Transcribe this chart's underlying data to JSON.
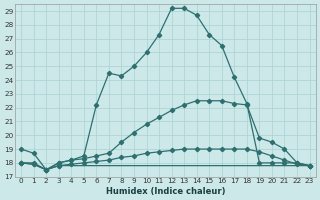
{
  "xlabel": "Humidex (Indice chaleur)",
  "bg_color": "#cce8e8",
  "grid_color": "#b0d4d4",
  "line_color": "#2e7070",
  "xlim": [
    -0.5,
    23.5
  ],
  "ylim": [
    17,
    29.5
  ],
  "yticks": [
    17,
    18,
    19,
    20,
    21,
    22,
    23,
    24,
    25,
    26,
    27,
    28,
    29
  ],
  "xticks": [
    0,
    1,
    2,
    3,
    4,
    5,
    6,
    7,
    8,
    9,
    10,
    11,
    12,
    13,
    14,
    15,
    16,
    17,
    18,
    19,
    20,
    21,
    22,
    23
  ],
  "line1_x": [
    0,
    1,
    2,
    3,
    4,
    5,
    6,
    7,
    8,
    9,
    10,
    11,
    12,
    13,
    14,
    15,
    16,
    17,
    18,
    19,
    20,
    21,
    22,
    23
  ],
  "line1_y": [
    19.0,
    18.7,
    17.5,
    18.0,
    18.2,
    18.5,
    22.2,
    24.5,
    24.3,
    25.0,
    26.0,
    27.3,
    29.2,
    29.2,
    28.7,
    27.3,
    26.5,
    24.2,
    22.3,
    18.0,
    18.0,
    18.0,
    18.0,
    17.8
  ],
  "line2_x": [
    0,
    1,
    2,
    3,
    4,
    5,
    6,
    7,
    8,
    9,
    10,
    11,
    12,
    13,
    14,
    15,
    16,
    17,
    18,
    19,
    20,
    21,
    22,
    23
  ],
  "line2_y": [
    18.0,
    18.0,
    17.5,
    18.0,
    18.2,
    18.3,
    18.5,
    18.7,
    19.5,
    20.2,
    20.8,
    21.3,
    21.8,
    22.2,
    22.5,
    22.5,
    22.5,
    22.3,
    22.2,
    19.8,
    19.5,
    19.0,
    18.0,
    17.8
  ],
  "line3_x": [
    0,
    1,
    2,
    3,
    4,
    5,
    6,
    7,
    8,
    9,
    10,
    11,
    12,
    13,
    14,
    15,
    16,
    17,
    18,
    19,
    20,
    21,
    22,
    23
  ],
  "line3_y": [
    18.0,
    17.9,
    17.5,
    17.8,
    17.9,
    18.0,
    18.1,
    18.2,
    18.4,
    18.5,
    18.7,
    18.8,
    18.9,
    19.0,
    19.0,
    19.0,
    19.0,
    19.0,
    19.0,
    18.8,
    18.5,
    18.2,
    17.9,
    17.8
  ],
  "line4_x": [
    0,
    1,
    2,
    3,
    23
  ],
  "line4_y": [
    18.0,
    17.9,
    17.5,
    17.8,
    17.8
  ]
}
